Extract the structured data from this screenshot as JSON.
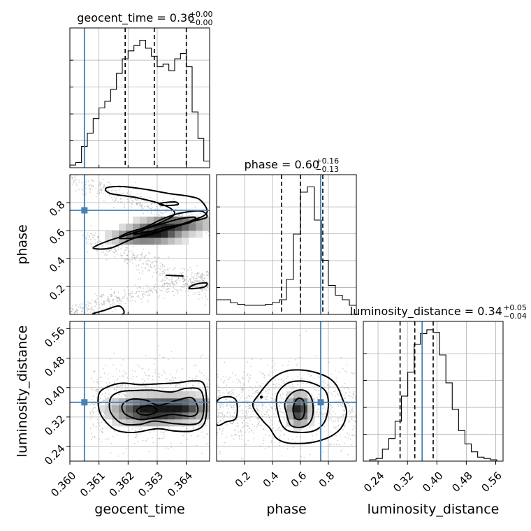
{
  "chart_data": {
    "type": "corner",
    "truth_color": "#4682b4",
    "parameters": [
      {
        "name": "geocent_time",
        "xlabel": "geocent_time",
        "range": [
          0.36,
          0.3648
        ],
        "ticks": [
          {
            "value": 0.36,
            "label": "0.360"
          },
          {
            "value": 0.361,
            "label": "0.361"
          },
          {
            "value": 0.362,
            "label": "0.362"
          },
          {
            "value": 0.363,
            "label": "0.363"
          },
          {
            "value": 0.364,
            "label": "0.364"
          }
        ],
        "truth": 0.3605,
        "quantiles": [
          0.3619,
          0.3629,
          0.364
        ],
        "title": {
          "main": "geocent_time = 0.36",
          "sup": "+0.00",
          "sub": "−0.00"
        },
        "hist_peak": 1.0,
        "hist": [
          0.02,
          0.04,
          0.16,
          0.26,
          0.37,
          0.45,
          0.5,
          0.59,
          0.71,
          0.82,
          0.88,
          0.92,
          0.96,
          0.9,
          0.84,
          0.76,
          0.78,
          0.73,
          0.82,
          0.86,
          0.76,
          0.42,
          0.22,
          0.05
        ]
      },
      {
        "name": "phase",
        "xlabel": "phase",
        "ylabel": "phase",
        "range": [
          0.0,
          1.0
        ],
        "ticks": [
          {
            "value": 0.2,
            "label": "0.2"
          },
          {
            "value": 0.4,
            "label": "0.4"
          },
          {
            "value": 0.6,
            "label": "0.6"
          },
          {
            "value": 0.8,
            "label": "0.8"
          }
        ],
        "truth": 0.745,
        "quantiles": [
          0.465,
          0.6,
          0.76
        ],
        "title": {
          "main": "phase = 0.60",
          "sup": "+0.16",
          "sub": "−0.13"
        },
        "hist_peak": 3.8,
        "hist": [
          0.42,
          0.42,
          0.33,
          0.29,
          0.26,
          0.26,
          0.26,
          0.29,
          0.34,
          0.42,
          1.0,
          2.3,
          3.5,
          3.65,
          2.7,
          1.55,
          0.83,
          0.55,
          0.42,
          0.26
        ]
      },
      {
        "name": "luminosity_distance",
        "xlabel": "luminosity_distance",
        "ylabel": "luminosity_distance",
        "range": [
          0.2,
          0.58
        ],
        "ticks": [
          {
            "value": 0.24,
            "label": "0.24"
          },
          {
            "value": 0.32,
            "label": "0.32"
          },
          {
            "value": 0.4,
            "label": "0.40"
          },
          {
            "value": 0.48,
            "label": "0.48"
          },
          {
            "value": 0.56,
            "label": "0.56"
          }
        ],
        "truth": 0.36,
        "quantiles": [
          0.3,
          0.34,
          0.39
        ],
        "title": {
          "main": "luminosity_distance = 0.34",
          "sup": "+0.05",
          "sub": "−0.04"
        },
        "hist_peak": 1.0,
        "hist": [
          0.0,
          0.01,
          0.02,
          0.09,
          0.17,
          0.3,
          0.49,
          0.67,
          0.88,
          0.96,
          0.99,
          0.97,
          0.8,
          0.59,
          0.39,
          0.23,
          0.13,
          0.07,
          0.03,
          0.02,
          0.01,
          0.0
        ]
      }
    ],
    "pairs": [
      {
        "x": "geocent_time",
        "y": "phase",
        "contours": [
          {
            "level": 0.95,
            "points": [
              [
                0.36125,
                0.905
              ],
              [
                0.3618,
                0.915
              ],
              [
                0.3626,
                0.895
              ],
              [
                0.3634,
                0.865
              ],
              [
                0.3641,
                0.845
              ],
              [
                0.3645,
                0.815
              ],
              [
                0.3647,
                0.725
              ],
              [
                0.3641,
                0.665
              ],
              [
                0.3632,
                0.605
              ],
              [
                0.3622,
                0.545
              ],
              [
                0.3614,
                0.475
              ],
              [
                0.3608,
                0.475
              ],
              [
                0.3613,
                0.525
              ],
              [
                0.3622,
                0.585
              ],
              [
                0.3632,
                0.665
              ],
              [
                0.3636,
                0.725
              ],
              [
                0.3632,
                0.785
              ],
              [
                0.3623,
                0.835
              ],
              [
                0.3614,
                0.865
              ]
            ]
          },
          {
            "level": 0.68,
            "points": [
              [
                0.3617,
                0.545
              ],
              [
                0.3625,
                0.555
              ],
              [
                0.3633,
                0.605
              ],
              [
                0.3642,
                0.665
              ],
              [
                0.3647,
                0.695
              ],
              [
                0.3645,
                0.74
              ],
              [
                0.3638,
                0.725
              ],
              [
                0.3632,
                0.685
              ],
              [
                0.3626,
                0.625
              ],
              [
                0.362,
                0.585
              ]
            ]
          },
          {
            "level": 0.39,
            "points": [
              [
                0.3622,
                0.575
              ],
              [
                0.3628,
                0.595
              ],
              [
                0.3633,
                0.625
              ],
              [
                0.3641,
                0.655
              ],
              [
                0.3643,
                0.695
              ],
              [
                0.3638,
                0.685
              ],
              [
                0.3631,
                0.645
              ],
              [
                0.3625,
                0.605
              ]
            ]
          },
          {
            "level": 0.95,
            "points": [
              [
                0.3631,
                0.795
              ],
              [
                0.3636,
                0.805
              ],
              [
                0.3637,
                0.785
              ],
              [
                0.3632,
                0.78
              ]
            ]
          },
          {
            "level": 0.95,
            "points": [
              [
                0.3641,
                0.185
              ],
              [
                0.3646,
                0.195
              ],
              [
                0.3647,
                0.225
              ],
              [
                0.3643,
                0.215
              ]
            ]
          },
          {
            "level": 0.95,
            "points": [
              [
                0.3608,
                0.0
              ],
              [
                0.3612,
                0.03
              ],
              [
                0.3617,
                0.06
              ],
              [
                0.3618,
                0.0
              ]
            ]
          },
          {
            "level": 0.95,
            "points": [
              [
                0.3633,
                0.28
              ],
              [
                0.3639,
                0.275
              ]
            ]
          }
        ],
        "density_modes": [
          {
            "center": [
              0.3629,
              0.58
            ],
            "spread": [
              0.0006,
              0.04
            ],
            "w": 1.0
          },
          {
            "center": [
              0.3637,
              0.65
            ],
            "spread": [
              0.0007,
              0.035
            ],
            "w": 0.75
          },
          {
            "center": [
              0.3621,
              0.55
            ],
            "spread": [
              0.0005,
              0.025
            ],
            "w": 0.45
          }
        ],
        "scatter_tracks": [
          {
            "from": [
              0.36,
              0.98
            ],
            "to": [
              0.3648,
              0.62
            ],
            "spread": 0.07
          },
          {
            "from": [
              0.3605,
              0.55
            ],
            "to": [
              0.3648,
              0.18
            ],
            "spread": 0.09
          },
          {
            "from": [
              0.36,
              0.02
            ],
            "to": [
              0.3648,
              0.28
            ],
            "spread": 0.06
          }
        ]
      },
      {
        "x": "geocent_time",
        "y": "luminosity_distance",
        "contours": [
          {
            "level": 0.95,
            "points": [
              [
                0.361,
                0.383
              ],
              [
                0.3613,
                0.402
              ],
              [
                0.3618,
                0.412
              ],
              [
                0.3624,
                0.408
              ],
              [
                0.363,
                0.41
              ],
              [
                0.3637,
                0.413
              ],
              [
                0.3642,
                0.418
              ],
              [
                0.3646,
                0.41
              ],
              [
                0.3647,
                0.35
              ],
              [
                0.3646,
                0.3
              ],
              [
                0.3642,
                0.282
              ],
              [
                0.3636,
                0.282
              ],
              [
                0.363,
                0.288
              ],
              [
                0.3622,
                0.278
              ],
              [
                0.3616,
                0.284
              ],
              [
                0.3612,
                0.31
              ],
              [
                0.361,
                0.34
              ]
            ]
          },
          {
            "level": 0.68,
            "points": [
              [
                0.3614,
                0.371
              ],
              [
                0.3617,
                0.388
              ],
              [
                0.3622,
                0.392
              ],
              [
                0.3628,
                0.393
              ],
              [
                0.3635,
                0.388
              ],
              [
                0.364,
                0.398
              ],
              [
                0.3645,
                0.392
              ],
              [
                0.3646,
                0.34
              ],
              [
                0.3644,
                0.303
              ],
              [
                0.3636,
                0.302
              ],
              [
                0.3629,
                0.309
              ],
              [
                0.3624,
                0.3
              ],
              [
                0.3618,
                0.302
              ],
              [
                0.3614,
                0.333
              ]
            ]
          },
          {
            "level": 0.39,
            "points": [
              [
                0.3618,
                0.352
              ],
              [
                0.3621,
                0.368
              ],
              [
                0.3626,
                0.366
              ],
              [
                0.363,
                0.352
              ],
              [
                0.3633,
                0.356
              ],
              [
                0.3637,
                0.366
              ],
              [
                0.3642,
                0.372
              ],
              [
                0.3644,
                0.34
              ],
              [
                0.3642,
                0.322
              ],
              [
                0.3635,
                0.327
              ],
              [
                0.3629,
                0.318
              ],
              [
                0.3624,
                0.313
              ],
              [
                0.3619,
                0.328
              ]
            ]
          },
          {
            "level": 0.12,
            "points": [
              [
                0.3623,
                0.338
              ],
              [
                0.3625,
                0.348
              ],
              [
                0.3628,
                0.35
              ],
              [
                0.363,
                0.336
              ],
              [
                0.3627,
                0.326
              ],
              [
                0.3624,
                0.328
              ]
            ]
          }
        ],
        "density_modes": [
          {
            "center": [
              0.3627,
              0.338
            ],
            "spread": [
              0.00075,
              0.022
            ],
            "w": 1.0
          },
          {
            "center": [
              0.3639,
              0.345
            ],
            "spread": [
              0.0006,
              0.02
            ],
            "w": 0.7
          }
        ],
        "scatter_box": {
          "x": [
            0.3607,
            0.3648
          ],
          "y": [
            0.24,
            0.47
          ]
        }
      },
      {
        "x": "phase",
        "y": "luminosity_distance",
        "contours": [
          {
            "level": 0.95,
            "points": [
              [
                0.0,
                0.3
              ],
              [
                0.07,
                0.307
              ],
              [
                0.14,
                0.318
              ],
              [
                0.14,
                0.365
              ],
              [
                0.07,
                0.375
              ],
              [
                0.0,
                0.36
              ]
            ]
          },
          {
            "level": 0.95,
            "points": [
              [
                0.26,
                0.35
              ],
              [
                0.3,
                0.38
              ],
              [
                0.4,
                0.425
              ],
              [
                0.5,
                0.445
              ],
              [
                0.6,
                0.448
              ],
              [
                0.7,
                0.442
              ],
              [
                0.8,
                0.427
              ],
              [
                0.86,
                0.405
              ],
              [
                0.9,
                0.37
              ],
              [
                0.93,
                0.335
              ],
              [
                0.9,
                0.295
              ],
              [
                0.82,
                0.268
              ],
              [
                0.7,
                0.252
              ],
              [
                0.6,
                0.248
              ],
              [
                0.5,
                0.25
              ],
              [
                0.43,
                0.262
              ],
              [
                0.38,
                0.29
              ],
              [
                0.33,
                0.31
              ]
            ]
          },
          {
            "level": 0.68,
            "points": [
              [
                0.43,
                0.375
              ],
              [
                0.5,
                0.41
              ],
              [
                0.6,
                0.418
              ],
              [
                0.7,
                0.41
              ],
              [
                0.78,
                0.39
              ],
              [
                0.8,
                0.35
              ],
              [
                0.77,
                0.305
              ],
              [
                0.7,
                0.283
              ],
              [
                0.6,
                0.278
              ],
              [
                0.5,
                0.285
              ],
              [
                0.45,
                0.315
              ]
            ]
          },
          {
            "level": 0.39,
            "points": [
              [
                0.49,
                0.36
              ],
              [
                0.55,
                0.388
              ],
              [
                0.63,
                0.392
              ],
              [
                0.68,
                0.37
              ],
              [
                0.69,
                0.33
              ],
              [
                0.66,
                0.302
              ],
              [
                0.6,
                0.292
              ],
              [
                0.53,
                0.298
              ],
              [
                0.5,
                0.33
              ]
            ]
          },
          {
            "level": 0.12,
            "points": [
              [
                0.55,
                0.35
              ],
              [
                0.58,
                0.37
              ],
              [
                0.62,
                0.365
              ],
              [
                0.63,
                0.335
              ],
              [
                0.61,
                0.315
              ],
              [
                0.57,
                0.315
              ],
              [
                0.55,
                0.33
              ]
            ]
          }
        ],
        "dots": [
          [
            0.32,
            0.374
          ]
        ],
        "density_modes": [
          {
            "center": [
              0.59,
              0.34
            ],
            "spread": [
              0.05,
              0.025
            ],
            "w": 1.0
          }
        ],
        "scatter_box": {
          "x": [
            0.0,
            1.0
          ],
          "y": [
            0.22,
            0.47
          ]
        }
      }
    ]
  }
}
